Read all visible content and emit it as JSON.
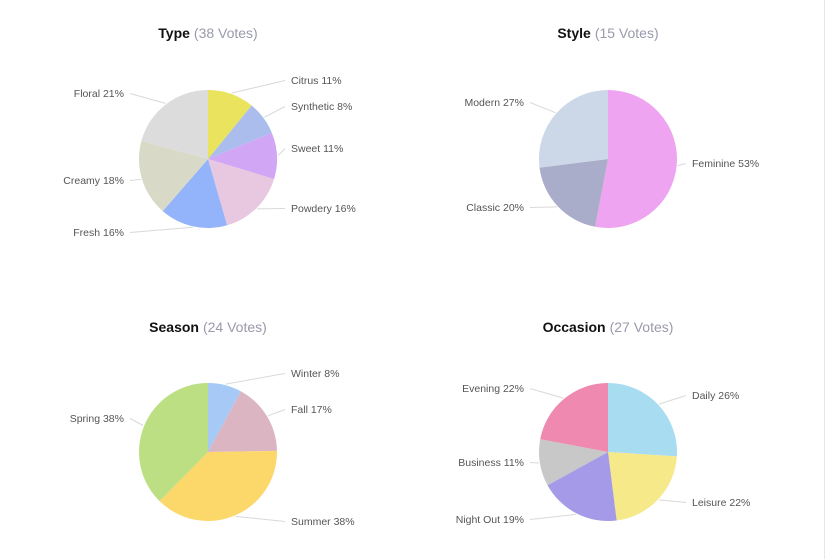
{
  "chart_data": [
    {
      "type": "pie",
      "title": "Type",
      "votes_label": "(38 Votes)",
      "slices": [
        {
          "label": "Citrus",
          "value": 11,
          "color": "#e9e35d"
        },
        {
          "label": "Synthetic",
          "value": 8,
          "color": "#aabdec"
        },
        {
          "label": "Sweet",
          "value": 11,
          "color": "#d1a6f5"
        },
        {
          "label": "Powdery",
          "value": 16,
          "color": "#e7c8e0"
        },
        {
          "label": "Fresh",
          "value": 16,
          "color": "#93b4fa"
        },
        {
          "label": "Creamy",
          "value": 18,
          "color": "#d9d9c7"
        },
        {
          "label": "Floral",
          "value": 21,
          "color": "#dcdcdc"
        }
      ]
    },
    {
      "type": "pie",
      "title": "Style",
      "votes_label": "(15 Votes)",
      "slices": [
        {
          "label": "Feminine",
          "value": 53,
          "color": "#eea4f0"
        },
        {
          "label": "Classic",
          "value": 20,
          "color": "#aaadca"
        },
        {
          "label": "Modern",
          "value": 27,
          "color": "#ccd7e8"
        }
      ]
    },
    {
      "type": "pie",
      "title": "Season",
      "votes_label": "(24 Votes)",
      "slices": [
        {
          "label": "Winter",
          "value": 8,
          "color": "#a6c9f5"
        },
        {
          "label": "Fall",
          "value": 17,
          "color": "#dbb6c2"
        },
        {
          "label": "Summer",
          "value": 38,
          "color": "#fcd76a"
        },
        {
          "label": "Spring",
          "value": 38,
          "color": "#bddf84"
        }
      ]
    },
    {
      "type": "pie",
      "title": "Occasion",
      "votes_label": "(27 Votes)",
      "slices": [
        {
          "label": "Daily",
          "value": 26,
          "color": "#a8dcf1"
        },
        {
          "label": "Leisure",
          "value": 22,
          "color": "#f5e98a"
        },
        {
          "label": "Night Out",
          "value": 19,
          "color": "#a49ae8"
        },
        {
          "label": "Business",
          "value": 11,
          "color": "#c8c8c8"
        },
        {
          "label": "Evening",
          "value": 22,
          "color": "#ef89b0"
        }
      ]
    }
  ]
}
